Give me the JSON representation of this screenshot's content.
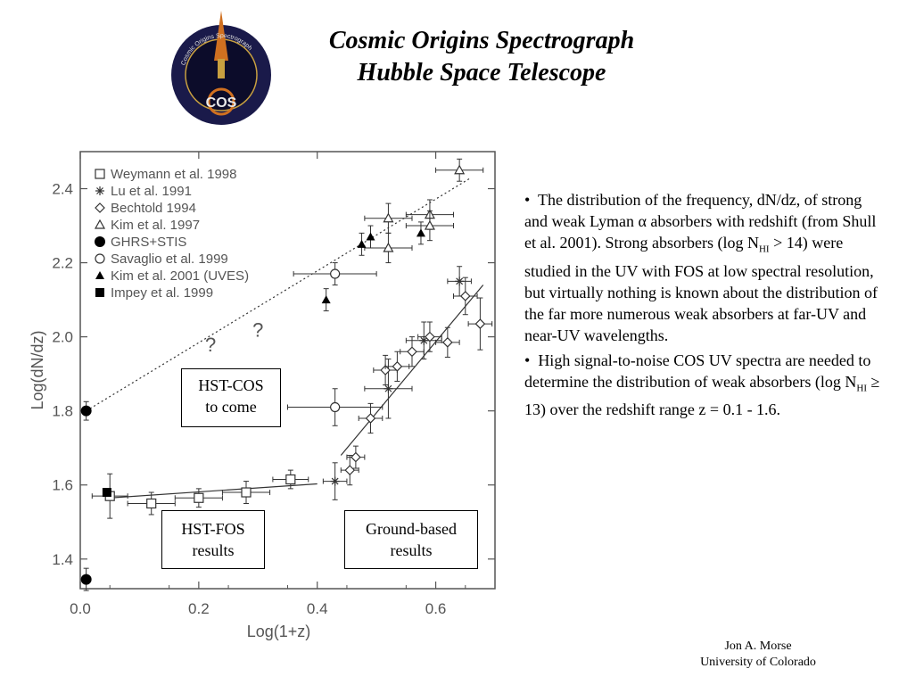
{
  "header": {
    "title_line1": "Cosmic Origins Spectrograph",
    "title_line2": "Hubble Space Telescope"
  },
  "logo": {
    "ring_text": "Cosmic Origins Spectrograph",
    "label": "COS",
    "colors": {
      "ring": "#1a1a4a",
      "inner": "#0c0c2a",
      "accent": "#d07020",
      "gold": "#c8a040"
    }
  },
  "chart_data": {
    "type": "scatter",
    "xlabel": "Log(1+z)",
    "ylabel": "Log(dN/dz)",
    "xlim": [
      0.0,
      0.7
    ],
    "ylim": [
      1.32,
      2.5
    ],
    "xticks": [
      "0.0",
      "0.2",
      "0.4",
      "0.6"
    ],
    "yticks": [
      "1.4",
      "1.6",
      "1.8",
      "2.0",
      "2.2",
      "2.4"
    ],
    "legend_position": "top-left",
    "series": [
      {
        "name": "Weymann et al. 1998",
        "marker": "square-open",
        "points": [
          [
            0.05,
            1.57
          ],
          [
            0.12,
            1.55
          ],
          [
            0.2,
            1.565
          ],
          [
            0.28,
            1.58
          ],
          [
            0.355,
            1.615
          ]
        ],
        "yerr": [
          0.06,
          0.03,
          0.025,
          0.03,
          0.025
        ],
        "xerr": [
          0.03,
          0.04,
          0.04,
          0.04,
          0.03
        ]
      },
      {
        "name": "Lu et al. 1991",
        "marker": "star",
        "points": [
          [
            0.43,
            1.61
          ],
          [
            0.52,
            1.86
          ],
          [
            0.58,
            1.99
          ],
          [
            0.64,
            2.15
          ]
        ],
        "yerr": [
          0.05,
          0.08,
          0.05,
          0.04
        ],
        "xerr": [
          0.02,
          0.04,
          0.03,
          0.02
        ]
      },
      {
        "name": "Bechtold 1994",
        "marker": "diamond-open",
        "points": [
          [
            0.455,
            1.64
          ],
          [
            0.465,
            1.675
          ],
          [
            0.49,
            1.78
          ],
          [
            0.515,
            1.91
          ],
          [
            0.535,
            1.92
          ],
          [
            0.56,
            1.96
          ],
          [
            0.59,
            2.0
          ],
          [
            0.62,
            1.985
          ],
          [
            0.65,
            2.11
          ],
          [
            0.675,
            2.035
          ]
        ],
        "yerr": [
          0.04,
          0.03,
          0.04,
          0.04,
          0.04,
          0.04,
          0.04,
          0.04,
          0.05,
          0.07
        ],
        "xerr": [
          0.015,
          0.015,
          0.02,
          0.02,
          0.02,
          0.02,
          0.02,
          0.02,
          0.02,
          0.02
        ]
      },
      {
        "name": "Kim et al. 1997",
        "marker": "triangle-open",
        "points": [
          [
            0.52,
            2.24
          ],
          [
            0.52,
            2.32
          ],
          [
            0.59,
            2.33
          ],
          [
            0.59,
            2.3
          ],
          [
            0.64,
            2.45
          ]
        ],
        "yerr": [
          0.04,
          0.04,
          0.04,
          0.04,
          0.03
        ],
        "xerr": [
          0.04,
          0.04,
          0.04,
          0.04,
          0.04
        ]
      },
      {
        "name": "GHRS+STIS",
        "marker": "circle-filled",
        "points": [
          [
            0.01,
            1.8
          ],
          [
            0.01,
            1.345
          ]
        ],
        "yerr": [
          0.025,
          0.03
        ],
        "xerr": [
          0.0,
          0.0
        ]
      },
      {
        "name": "Savaglio et al. 1999",
        "marker": "circle-open",
        "points": [
          [
            0.43,
            2.17
          ],
          [
            0.43,
            1.81
          ]
        ],
        "yerr": [
          0.03,
          0.05
        ],
        "xerr": [
          0.07,
          0.08
        ]
      },
      {
        "name": "Kim et al. 2001 (UVES)",
        "marker": "triangle-filled",
        "points": [
          [
            0.415,
            2.1
          ],
          [
            0.475,
            2.25
          ],
          [
            0.49,
            2.27
          ],
          [
            0.575,
            2.28
          ]
        ],
        "yerr": [
          0.03,
          0.03,
          0.03,
          0.03
        ],
        "xerr": [
          0.0,
          0.0,
          0.0,
          0.0
        ]
      },
      {
        "name": "Impey et al. 1999",
        "marker": "square-filled",
        "points": [
          [
            0.045,
            1.58
          ]
        ],
        "yerr": [
          0.0
        ],
        "xerr": [
          0.0
        ]
      }
    ],
    "fit_lines": [
      {
        "style": "solid",
        "from": [
          0.05,
          1.565
        ],
        "to": [
          0.4,
          1.603
        ]
      },
      {
        "style": "solid",
        "from": [
          0.44,
          1.68
        ],
        "to": [
          0.68,
          2.14
        ]
      },
      {
        "style": "dotted",
        "from": [
          0.01,
          1.8
        ],
        "to": [
          0.66,
          2.43
        ]
      }
    ],
    "annotations": [
      {
        "text": "?",
        "x": 0.22,
        "y": 1.96
      },
      {
        "text": "?",
        "x": 0.3,
        "y": 2.0
      }
    ]
  },
  "overlays": {
    "cos_box": [
      "HST-COS",
      "to come"
    ],
    "fos_box": [
      "HST-FOS",
      "results"
    ],
    "ground_box": [
      "Ground-based",
      "results"
    ]
  },
  "description": {
    "para1_pre_alpha": "The distribution of the frequency, dN/dz, of strong and weak Lyman ",
    "alpha": "α",
    "para1_post_alpha": " absorbers with redshift (from Shull et al. 2001). Strong absorbers (log N",
    "para1_sub": "HI",
    "para1_end": " > 14) were studied in the UV with FOS at low spectral resolution, but virtually nothing is known about the distribution of the far more numerous weak absorbers at far-UV and near-UV wavelengths.",
    "para2_pre": "High signal-to-noise COS UV spectra are needed to determine the distribution of weak absorbers (log N",
    "para2_sub": "HI",
    "para2_end": " ≥ 13) over the redshift range z = 0.1 - 1.6.",
    "bullet": "•"
  },
  "author": {
    "name": "Jon A.  Morse",
    "affiliation": "University of Colorado"
  }
}
